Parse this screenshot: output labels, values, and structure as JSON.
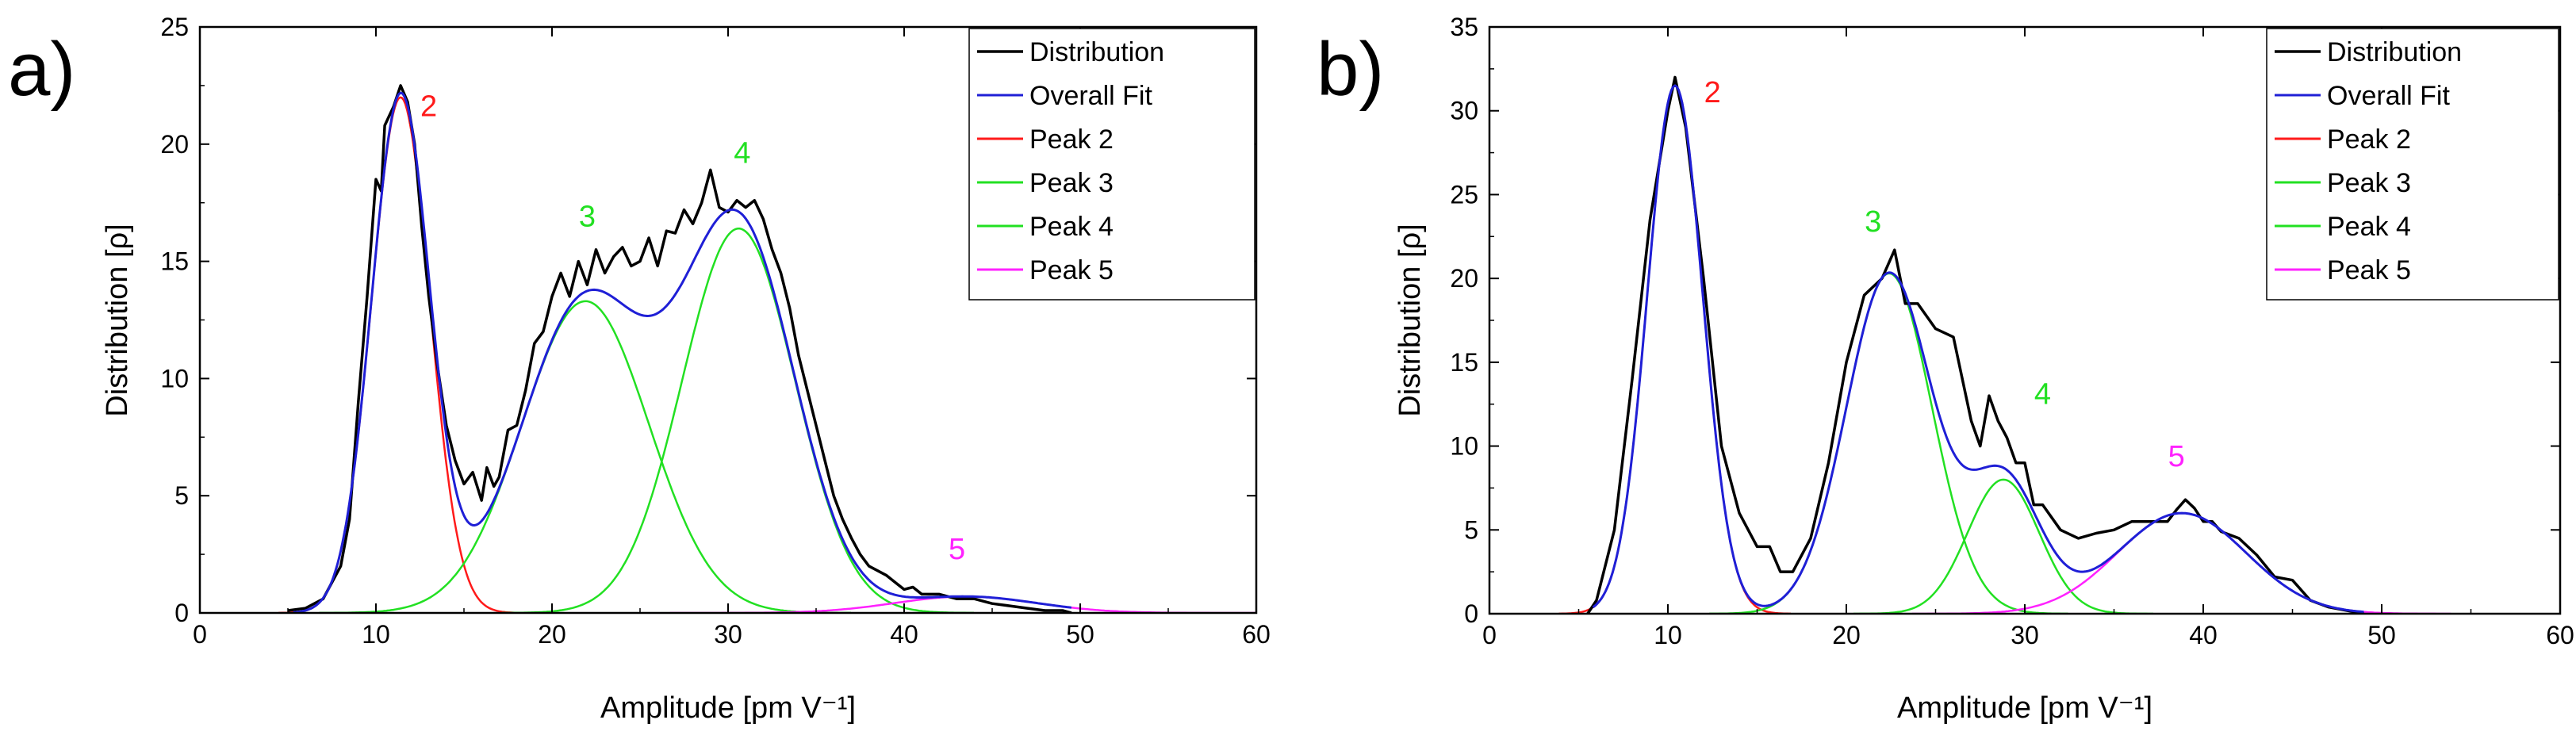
{
  "colors": {
    "distribution": "#000000",
    "overall_fit": "#1f1fd6",
    "peak2": "#ff1a1a",
    "peak3": "#22e022",
    "peak4": "#22e022",
    "peak5": "#ff22ff"
  },
  "chart_data": [
    {
      "type": "line",
      "panel_label": "a)",
      "xlabel": "Amplitude [pm V⁻¹]",
      "ylabel": "Distribution [ρ]",
      "xlim": [
        0,
        60
      ],
      "ylim": [
        0,
        25
      ],
      "xticks": [
        0,
        10,
        20,
        30,
        40,
        50,
        60
      ],
      "yticks": [
        0,
        5,
        10,
        15,
        20,
        25
      ],
      "xtick_labels": [
        "0",
        "10",
        "20",
        "30",
        "40",
        "50",
        "60"
      ],
      "ytick_labels": [
        "0",
        "5",
        "10",
        "15",
        "20",
        "25"
      ],
      "legend": [
        "Distribution",
        "Overall Fit",
        "Peak 2",
        "Peak 3",
        "Peak 4",
        "Peak 5"
      ],
      "legend_position": "top-right",
      "peak_labels": [
        {
          "text": "2",
          "x": 13.0,
          "y": 21.2,
          "color": "#ff1a1a"
        },
        {
          "text": "3",
          "x": 22.0,
          "y": 16.5,
          "color": "#22e022"
        },
        {
          "text": "4",
          "x": 30.8,
          "y": 19.2,
          "color": "#22e022"
        },
        {
          "text": "5",
          "x": 43.0,
          "y": 2.3,
          "color": "#ff22ff"
        }
      ],
      "peaks": [
        {
          "name": "Peak 2",
          "center": 11.4,
          "amplitude": 22.0,
          "sigma": 1.65
        },
        {
          "name": "Peak 3",
          "center": 21.9,
          "amplitude": 13.3,
          "sigma": 3.6
        },
        {
          "name": "Peak 4",
          "center": 30.6,
          "amplitude": 16.4,
          "sigma": 3.2
        },
        {
          "name": "Peak 5",
          "center": 43.5,
          "amplitude": 0.7,
          "sigma": 4.0
        }
      ],
      "distribution": {
        "x": [
          5.0,
          6.0,
          7.0,
          8.0,
          8.5,
          9.0,
          9.5,
          10.0,
          10.3,
          10.5,
          11.0,
          11.4,
          11.8,
          12.2,
          12.6,
          13.0,
          13.5,
          14.0,
          14.5,
          15.0,
          15.5,
          16.0,
          16.3,
          16.7,
          17.0,
          17.5,
          18.0,
          18.5,
          19.0,
          19.5,
          20.0,
          20.5,
          21.0,
          21.5,
          22.0,
          22.5,
          23.0,
          23.5,
          24.0,
          24.5,
          25.0,
          25.5,
          26.0,
          26.5,
          27.0,
          27.5,
          28.0,
          28.5,
          29.0,
          29.5,
          30.0,
          30.5,
          31.0,
          31.5,
          32.0,
          32.5,
          33.0,
          33.5,
          34.0,
          34.5,
          35.0,
          35.5,
          36.0,
          36.5,
          37.0,
          37.5,
          38.0,
          38.5,
          39.0,
          39.5,
          40.0,
          40.5,
          41.0,
          42.0,
          43.0,
          44.0,
          45.0,
          46.0,
          47.0,
          48.0,
          49.0,
          49.5
        ],
        "y": [
          0.1,
          0.2,
          0.6,
          2.0,
          4.0,
          9.0,
          13.5,
          18.5,
          18.0,
          20.8,
          21.6,
          22.5,
          21.8,
          20.0,
          16.5,
          13.5,
          10.5,
          8.0,
          6.5,
          5.5,
          6.0,
          4.8,
          6.2,
          5.4,
          5.8,
          7.8,
          8.0,
          9.5,
          11.5,
          12.0,
          13.5,
          14.5,
          13.5,
          15.0,
          14.0,
          15.5,
          14.5,
          15.2,
          15.6,
          14.8,
          15.0,
          16.0,
          14.8,
          16.3,
          16.2,
          17.2,
          16.6,
          17.5,
          18.9,
          17.3,
          17.1,
          17.6,
          17.3,
          17.6,
          16.8,
          15.5,
          14.5,
          13.0,
          11.0,
          9.5,
          8.0,
          6.5,
          5.0,
          4.0,
          3.2,
          2.5,
          2.0,
          1.8,
          1.6,
          1.3,
          1.0,
          1.1,
          0.8,
          0.8,
          0.6,
          0.6,
          0.4,
          0.3,
          0.2,
          0.1,
          0.1,
          0.0
        ]
      }
    },
    {
      "type": "line",
      "panel_label": "b)",
      "xlabel": "Amplitude [pm V⁻¹]",
      "ylabel": "Distribution [ρ]",
      "xlim": [
        0,
        60
      ],
      "ylim": [
        0,
        35
      ],
      "xticks": [
        0,
        10,
        20,
        30,
        40,
        50,
        60
      ],
      "yticks": [
        0,
        5,
        10,
        15,
        20,
        25,
        30,
        35
      ],
      "xtick_labels": [
        "0",
        "10",
        "20",
        "30",
        "40",
        "50",
        "60"
      ],
      "ytick_labels": [
        "0",
        "5",
        "10",
        "15",
        "20",
        "25",
        "30",
        "35"
      ],
      "legend": [
        "Distribution",
        "Overall Fit",
        "Peak 2",
        "Peak 3",
        "Peak 4",
        "Peak 5"
      ],
      "legend_position": "top-right",
      "peak_labels": [
        {
          "text": "2",
          "x": 12.5,
          "y": 30.5,
          "color": "#ff1a1a"
        },
        {
          "text": "3",
          "x": 21.5,
          "y": 22.8,
          "color": "#22e022"
        },
        {
          "text": "4",
          "x": 31.0,
          "y": 12.5,
          "color": "#22e022"
        },
        {
          "text": "5",
          "x": 38.5,
          "y": 8.8,
          "color": "#ff22ff"
        }
      ],
      "peaks": [
        {
          "name": "Peak 2",
          "center": 10.4,
          "amplitude": 31.5,
          "sigma": 1.55
        },
        {
          "name": "Peak 3",
          "center": 22.4,
          "amplitude": 20.3,
          "sigma": 2.4
        },
        {
          "name": "Peak 4",
          "center": 28.8,
          "amplitude": 8.0,
          "sigma": 2.0
        },
        {
          "name": "Peak 5",
          "center": 38.8,
          "amplitude": 6.0,
          "sigma": 3.6
        }
      ],
      "distribution": {
        "x": [
          5.5,
          6.0,
          7.0,
          8.0,
          9.0,
          10.0,
          10.4,
          11.0,
          12.0,
          13.0,
          14.0,
          15.0,
          15.7,
          16.3,
          17.0,
          18.0,
          19.0,
          20.0,
          21.0,
          22.0,
          22.7,
          23.3,
          24.0,
          25.0,
          26.0,
          27.0,
          27.5,
          28.0,
          28.5,
          29.0,
          29.5,
          30.0,
          30.5,
          31.0,
          32.0,
          33.0,
          34.0,
          35.0,
          36.0,
          37.0,
          38.0,
          38.5,
          39.0,
          39.5,
          40.0,
          40.5,
          41.0,
          42.0,
          43.0,
          44.0,
          45.0,
          46.0,
          47.0,
          48.0,
          49.0
        ],
        "y": [
          0.0,
          0.8,
          5.0,
          14.0,
          23.5,
          30.0,
          32.0,
          29.0,
          20.0,
          10.0,
          6.0,
          4.0,
          4.0,
          2.5,
          2.5,
          4.5,
          9.0,
          15.0,
          19.0,
          20.0,
          21.7,
          18.5,
          18.5,
          17.0,
          16.5,
          11.5,
          10.0,
          13.0,
          11.5,
          10.5,
          9.0,
          9.0,
          6.5,
          6.5,
          5.0,
          4.5,
          4.8,
          5.0,
          5.5,
          5.5,
          5.5,
          6.2,
          6.8,
          6.3,
          5.5,
          5.5,
          4.9,
          4.5,
          3.5,
          2.2,
          2.0,
          0.8,
          0.4,
          0.2,
          0.0
        ]
      }
    }
  ]
}
